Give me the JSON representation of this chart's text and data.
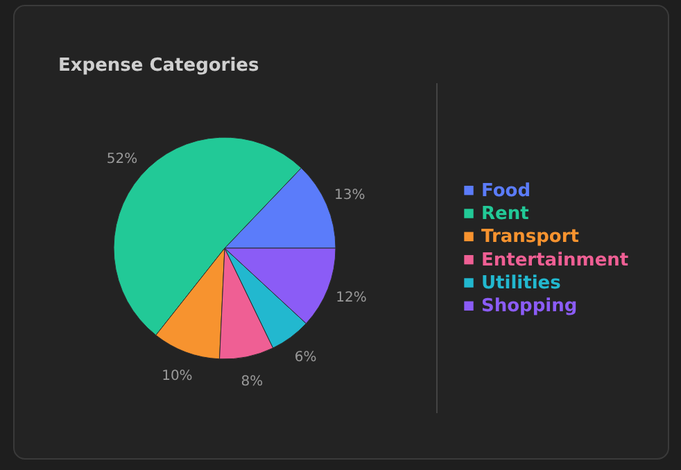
{
  "chart_data": {
    "type": "pie",
    "title": "Expense Categories",
    "categories": [
      "Food",
      "Rent",
      "Transport",
      "Entertainment",
      "Utilities",
      "Shopping"
    ],
    "values": [
      13,
      52,
      10,
      8,
      6,
      12
    ],
    "value_labels": [
      "13%",
      "52%",
      "10%",
      "8%",
      "6%",
      "12%"
    ],
    "colors": [
      "#5b7cfa",
      "#22c997",
      "#f7932f",
      "#ef5f94",
      "#22b8cf",
      "#8b5cf6"
    ],
    "legend": "right"
  }
}
